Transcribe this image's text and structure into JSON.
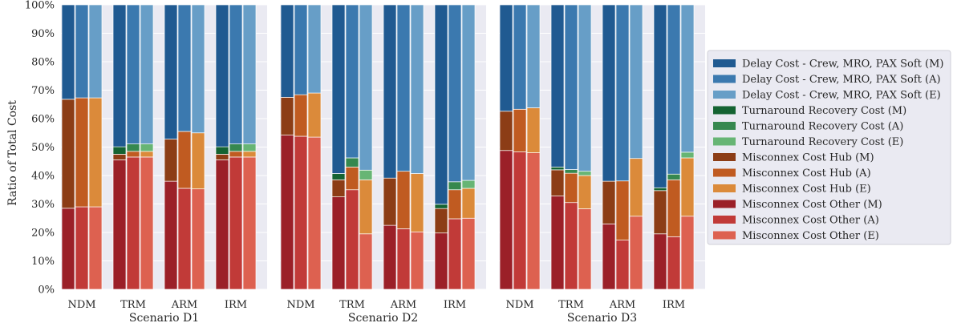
{
  "chart_data": {
    "type": "bar",
    "subtype": "stacked-100-percent",
    "ylabel": "Ratio of Total Cost",
    "ylim": [
      0,
      100
    ],
    "yticks": [
      "0%",
      "10%",
      "20%",
      "30%",
      "40%",
      "50%",
      "60%",
      "70%",
      "80%",
      "90%",
      "100%"
    ],
    "grid": true,
    "legend_position": "right",
    "categories": [
      "NDM",
      "TRM",
      "ARM",
      "IRM"
    ],
    "variants": [
      "M",
      "A",
      "E"
    ],
    "components": [
      {
        "name": "Misconnex Cost Other",
        "colors": {
          "M": "#9b2028",
          "A": "#c13a38",
          "E": "#dd6150"
        }
      },
      {
        "name": "Misconnex Cost Hub",
        "colors": {
          "M": "#8c3d16",
          "A": "#c05b21",
          "E": "#db8a3a"
        }
      },
      {
        "name": "Turnaround Recovery Cost",
        "colors": {
          "M": "#146332",
          "A": "#36884f",
          "E": "#67b574"
        }
      },
      {
        "name": "Delay Cost - Crew, MRO, PAX Soft",
        "colors": {
          "M": "#205a91",
          "A": "#3b79af",
          "E": "#679ec7"
        }
      }
    ],
    "legend": [
      {
        "label": "Delay Cost - Crew, MRO, PAX Soft (M)",
        "color": "#205a91"
      },
      {
        "label": "Delay Cost - Crew, MRO, PAX Soft (A)",
        "color": "#3b79af"
      },
      {
        "label": "Delay Cost - Crew, MRO, PAX Soft (E)",
        "color": "#679ec7"
      },
      {
        "label": "Turnaround Recovery Cost (M)",
        "color": "#146332"
      },
      {
        "label": "Turnaround Recovery Cost (A)",
        "color": "#36884f"
      },
      {
        "label": "Turnaround Recovery Cost (E)",
        "color": "#67b574"
      },
      {
        "label": "Misconnex Cost Hub (M)",
        "color": "#8c3d16"
      },
      {
        "label": "Misconnex Cost Hub (A)",
        "color": "#c05b21"
      },
      {
        "label": "Misconnex Cost Hub (E)",
        "color": "#db8a3a"
      },
      {
        "label": "Misconnex Cost Other (M)",
        "color": "#9b2028"
      },
      {
        "label": "Misconnex Cost Other (A)",
        "color": "#c13a38"
      },
      {
        "label": "Misconnex Cost Other (E)",
        "color": "#dd6150"
      }
    ],
    "panels": [
      {
        "xlabel": "Scenario D1",
        "data": {
          "NDM": {
            "M": {
              "other": 28.5,
              "hub": 38.3,
              "turn": 0,
              "delay": 33.2
            },
            "A": {
              "other": 29.0,
              "hub": 38.3,
              "turn": 0,
              "delay": 32.7
            },
            "E": {
              "other": 29.0,
              "hub": 38.3,
              "turn": 0,
              "delay": 32.7
            }
          },
          "TRM": {
            "M": {
              "other": 45.5,
              "hub": 2.0,
              "turn": 2.6,
              "delay": 49.9
            },
            "A": {
              "other": 46.5,
              "hub": 2.0,
              "turn": 2.6,
              "delay": 48.9
            },
            "E": {
              "other": 46.5,
              "hub": 2.0,
              "turn": 2.6,
              "delay": 48.9
            }
          },
          "ARM": {
            "M": {
              "other": 38.0,
              "hub": 14.8,
              "turn": 0,
              "delay": 47.2
            },
            "A": {
              "other": 35.5,
              "hub": 20.0,
              "turn": 0,
              "delay": 44.5
            },
            "E": {
              "other": 35.3,
              "hub": 19.7,
              "turn": 0,
              "delay": 45.0
            }
          },
          "IRM": {
            "M": {
              "other": 45.5,
              "hub": 2.0,
              "turn": 2.6,
              "delay": 49.9
            },
            "A": {
              "other": 46.5,
              "hub": 2.0,
              "turn": 2.6,
              "delay": 48.9
            },
            "E": {
              "other": 46.5,
              "hub": 2.0,
              "turn": 2.6,
              "delay": 48.9
            }
          }
        }
      },
      {
        "xlabel": "Scenario D2",
        "data": {
          "NDM": {
            "M": {
              "other": 54.2,
              "hub": 13.3,
              "turn": 0,
              "delay": 32.5
            },
            "A": {
              "other": 53.8,
              "hub": 14.6,
              "turn": 0,
              "delay": 31.6
            },
            "E": {
              "other": 53.5,
              "hub": 15.5,
              "turn": 0,
              "delay": 31.0
            }
          },
          "TRM": {
            "M": {
              "other": 32.5,
              "hub": 6.0,
              "turn": 2.2,
              "delay": 59.3
            },
            "A": {
              "other": 35.0,
              "hub": 8.0,
              "turn": 3.2,
              "delay": 53.8
            },
            "E": {
              "other": 19.5,
              "hub": 19.0,
              "turn": 3.4,
              "delay": 58.1
            }
          },
          "ARM": {
            "M": {
              "other": 22.5,
              "hub": 16.6,
              "turn": 0,
              "delay": 60.9
            },
            "A": {
              "other": 21.3,
              "hub": 20.2,
              "turn": 0,
              "delay": 58.5
            },
            "E": {
              "other": 20.2,
              "hub": 20.5,
              "turn": 0,
              "delay": 59.3
            }
          },
          "IRM": {
            "M": {
              "other": 19.8,
              "hub": 8.6,
              "turn": 1.5,
              "delay": 70.1
            },
            "A": {
              "other": 24.8,
              "hub": 10.2,
              "turn": 2.8,
              "delay": 62.2
            },
            "E": {
              "other": 25.0,
              "hub": 10.5,
              "turn": 2.8,
              "delay": 61.7
            }
          }
        }
      },
      {
        "xlabel": "Scenario D3",
        "data": {
          "NDM": {
            "M": {
              "other": 48.8,
              "hub": 13.8,
              "turn": 0,
              "delay": 37.4
            },
            "A": {
              "other": 48.3,
              "hub": 15.0,
              "turn": 0,
              "delay": 36.7
            },
            "E": {
              "other": 48.0,
              "hub": 15.8,
              "turn": 0,
              "delay": 36.2
            }
          },
          "TRM": {
            "M": {
              "other": 32.8,
              "hub": 9.2,
              "turn": 1.0,
              "delay": 57.0
            },
            "A": {
              "other": 30.5,
              "hub": 10.3,
              "turn": 1.3,
              "delay": 57.9
            },
            "E": {
              "other": 28.3,
              "hub": 11.7,
              "turn": 1.5,
              "delay": 58.5
            }
          },
          "ARM": {
            "M": {
              "other": 23.0,
              "hub": 15.0,
              "turn": 0,
              "delay": 62.0
            },
            "A": {
              "other": 17.3,
              "hub": 20.8,
              "turn": 0,
              "delay": 61.9
            },
            "E": {
              "other": 25.7,
              "hub": 20.3,
              "turn": 0,
              "delay": 54.0
            }
          },
          "IRM": {
            "M": {
              "other": 19.5,
              "hub": 15.2,
              "turn": 1.0,
              "delay": 64.3
            },
            "A": {
              "other": 18.5,
              "hub": 20.0,
              "turn": 2.0,
              "delay": 59.5
            },
            "E": {
              "other": 25.7,
              "hub": 20.5,
              "turn": 2.0,
              "delay": 51.8
            }
          }
        }
      }
    ]
  }
}
